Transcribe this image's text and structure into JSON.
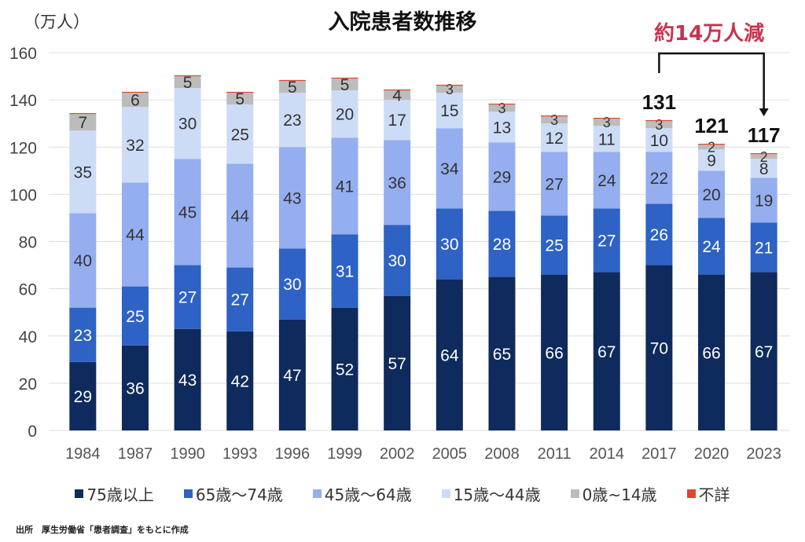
{
  "chart_data": {
    "type": "bar",
    "stacked": true,
    "title": "入院患者数推移",
    "ylabel": "（万人）",
    "xlabel": "",
    "ylim": [
      0,
      160
    ],
    "yticks": [
      0,
      20,
      40,
      60,
      80,
      100,
      120,
      140,
      160
    ],
    "grid": true,
    "legend_position": "bottom",
    "categories": [
      "1984",
      "1987",
      "1990",
      "1993",
      "1996",
      "1999",
      "2002",
      "2005",
      "2008",
      "2011",
      "2014",
      "2017",
      "2020",
      "2023"
    ],
    "series": [
      {
        "name": "75歳以上",
        "color": "#0f2a5c",
        "label_color": "#ffffff",
        "values": [
          29,
          36,
          43,
          42,
          47,
          52,
          57,
          64,
          65,
          66,
          67,
          70,
          66,
          67
        ]
      },
      {
        "name": "65歳〜74歳",
        "color": "#2e62c4",
        "label_color": "#ffffff",
        "values": [
          23,
          25,
          27,
          27,
          30,
          31,
          30,
          30,
          28,
          25,
          27,
          26,
          24,
          21
        ]
      },
      {
        "name": "45歳〜64歳",
        "color": "#94aef0",
        "label_color": "#333333",
        "values": [
          40,
          44,
          45,
          44,
          43,
          41,
          36,
          34,
          29,
          27,
          24,
          22,
          20,
          19
        ]
      },
      {
        "name": "15歳〜44歳",
        "color": "#cddcf6",
        "label_color": "#333333",
        "values": [
          35,
          32,
          30,
          25,
          23,
          20,
          17,
          15,
          13,
          12,
          11,
          10,
          9,
          8
        ]
      },
      {
        "name": "0歳~14歳",
        "color": "#bcbcbc",
        "label_color": "#333333",
        "values": [
          7,
          6,
          5,
          5,
          5,
          5,
          4,
          3,
          3,
          3,
          3,
          3,
          2,
          2
        ]
      },
      {
        "name": "不詳",
        "color": "#e0442c",
        "label_color": "#333333",
        "values": [
          0.4,
          0.4,
          0.4,
          0.4,
          0.4,
          0.4,
          0.4,
          0.4,
          0.4,
          0.4,
          0.4,
          0.4,
          0.4,
          0.4
        ],
        "show_labels": false
      }
    ],
    "total_labels": [
      {
        "category": "2017",
        "value": "131"
      },
      {
        "category": "2020",
        "value": "121"
      },
      {
        "category": "2023",
        "value": "117"
      }
    ],
    "annotation": {
      "text": "約14万人減",
      "from": "2017",
      "to": "2023",
      "color": "#c8324e"
    }
  },
  "source_note": "出所　厚生労働省「患者調査」をもとに作成"
}
